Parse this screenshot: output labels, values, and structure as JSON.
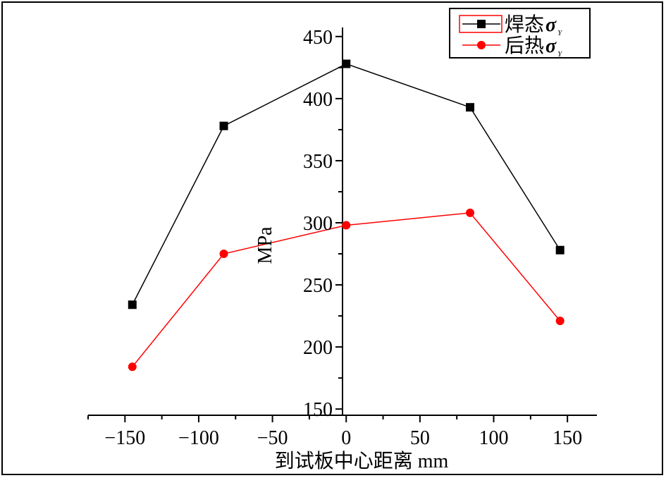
{
  "chart_data": {
    "type": "line",
    "xlabel": "到试板中心距离 mm",
    "ylabel": "MPa",
    "xlim": [
      -175,
      170
    ],
    "ylim": [
      145,
      455
    ],
    "x_ticks": [
      -150,
      -100,
      -50,
      0,
      50,
      100,
      150
    ],
    "x_tick_labels": [
      "−150",
      "−100",
      "−50",
      "0",
      "50",
      "100",
      "150"
    ],
    "y_ticks": [
      150,
      200,
      250,
      300,
      350,
      400,
      450
    ],
    "y_tick_labels": [
      "150",
      "200",
      "250",
      "300",
      "350",
      "400",
      "450"
    ],
    "x": [
      -145,
      -83,
      0,
      84,
      145
    ],
    "series": [
      {
        "name": "焊态",
        "subscript": "σ",
        "sub_index": "Y",
        "color": "#000000",
        "marker": "square",
        "values": [
          234,
          378,
          428,
          393,
          278
        ]
      },
      {
        "name": "后热",
        "subscript": "σ",
        "sub_index": "Y",
        "color": "#ff0000",
        "marker": "circle",
        "values": [
          184,
          275,
          298,
          308,
          221
        ]
      }
    ],
    "legend_position": "top-right",
    "grid": false
  }
}
